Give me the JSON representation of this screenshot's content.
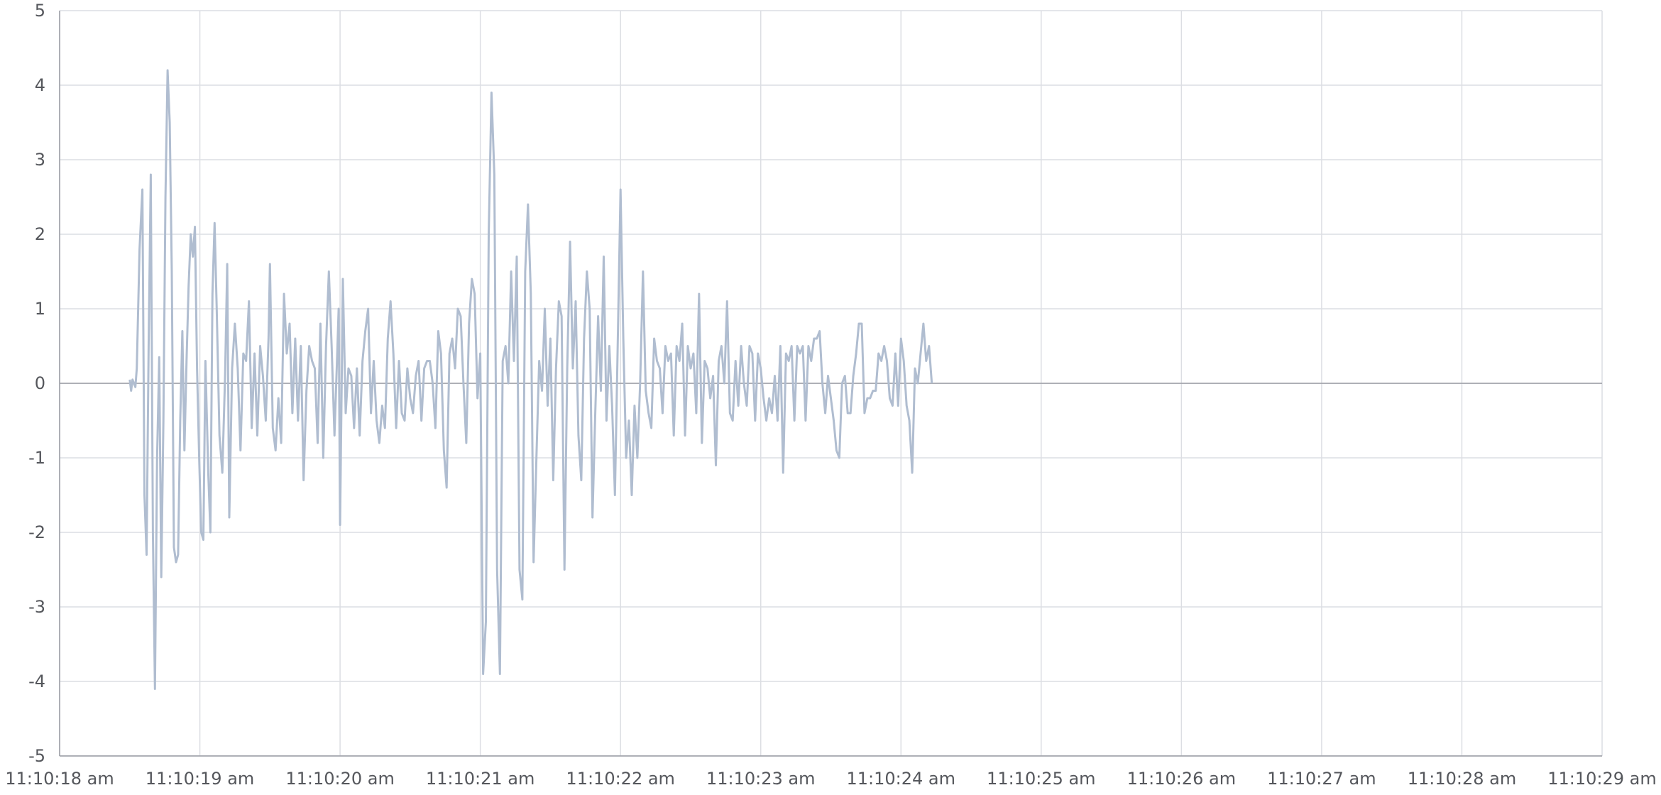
{
  "chart_data": {
    "type": "line",
    "title": "",
    "xlabel": "",
    "ylabel": "",
    "xlim": [
      0,
      11
    ],
    "ylim": [
      -5,
      5
    ],
    "grid": true,
    "legend": "none",
    "x_ticks": [
      {
        "value": 0,
        "label": "11:10:18 am"
      },
      {
        "value": 1,
        "label": "11:10:19 am"
      },
      {
        "value": 2,
        "label": "11:10:20 am"
      },
      {
        "value": 3,
        "label": "11:10:21 am"
      },
      {
        "value": 4,
        "label": "11:10:22 am"
      },
      {
        "value": 5,
        "label": "11:10:23 am"
      },
      {
        "value": 6,
        "label": "11:10:24 am"
      },
      {
        "value": 7,
        "label": "11:10:25 am"
      },
      {
        "value": 8,
        "label": "11:10:26 am"
      },
      {
        "value": 9,
        "label": "11:10:27 am"
      },
      {
        "value": 10,
        "label": "11:10:28 am"
      },
      {
        "value": 11,
        "label": "11:10:29 am"
      }
    ],
    "y_ticks": [
      {
        "value": 5,
        "label": "5"
      },
      {
        "value": 4,
        "label": "4"
      },
      {
        "value": 3,
        "label": "3"
      },
      {
        "value": 2,
        "label": "2"
      },
      {
        "value": 1,
        "label": "1"
      },
      {
        "value": 0,
        "label": "0"
      },
      {
        "value": -1,
        "label": "-1"
      },
      {
        "value": -2,
        "label": "-2"
      },
      {
        "value": -3,
        "label": "-3"
      },
      {
        "value": -4,
        "label": "-4"
      },
      {
        "value": -5,
        "label": "-5"
      }
    ],
    "series": [
      {
        "color": "#b0bdd0",
        "points": [
          [
            0.5,
            0.05
          ],
          [
            0.51,
            -0.1
          ],
          [
            0.52,
            0.05
          ],
          [
            0.54,
            -0.05
          ],
          [
            0.55,
            0.2
          ],
          [
            0.57,
            1.8
          ],
          [
            0.59,
            2.6
          ],
          [
            0.605,
            -1.5
          ],
          [
            0.62,
            -2.3
          ],
          [
            0.635,
            0.5
          ],
          [
            0.65,
            2.8
          ],
          [
            0.665,
            -2.0
          ],
          [
            0.68,
            -4.1
          ],
          [
            0.695,
            -1.0
          ],
          [
            0.71,
            0.35
          ],
          [
            0.725,
            -2.6
          ],
          [
            0.74,
            -0.5
          ],
          [
            0.755,
            2.5
          ],
          [
            0.77,
            4.2
          ],
          [
            0.785,
            3.5
          ],
          [
            0.8,
            1.5
          ],
          [
            0.815,
            -2.2
          ],
          [
            0.83,
            -2.4
          ],
          [
            0.845,
            -2.3
          ],
          [
            0.86,
            -0.5
          ],
          [
            0.875,
            0.7
          ],
          [
            0.89,
            -0.9
          ],
          [
            0.905,
            0.3
          ],
          [
            0.92,
            1.3
          ],
          [
            0.935,
            2.0
          ],
          [
            0.95,
            1.7
          ],
          [
            0.965,
            2.1
          ],
          [
            0.98,
            0.2
          ],
          [
            0.995,
            -1.0
          ],
          [
            1.01,
            -2.0
          ],
          [
            1.025,
            -2.1
          ],
          [
            1.04,
            0.3
          ],
          [
            1.06,
            -1.2
          ],
          [
            1.075,
            -2.0
          ],
          [
            1.09,
            1.2
          ],
          [
            1.105,
            2.15
          ],
          [
            1.12,
            1.0
          ],
          [
            1.14,
            -0.7
          ],
          [
            1.16,
            -1.2
          ],
          [
            1.18,
            0.1
          ],
          [
            1.195,
            1.6
          ],
          [
            1.21,
            -1.8
          ],
          [
            1.23,
            0.2
          ],
          [
            1.25,
            0.8
          ],
          [
            1.27,
            0.2
          ],
          [
            1.29,
            -0.9
          ],
          [
            1.31,
            0.4
          ],
          [
            1.33,
            0.3
          ],
          [
            1.35,
            1.1
          ],
          [
            1.37,
            -0.6
          ],
          [
            1.39,
            0.4
          ],
          [
            1.41,
            -0.7
          ],
          [
            1.43,
            0.5
          ],
          [
            1.45,
            0.1
          ],
          [
            1.47,
            -0.5
          ],
          [
            1.49,
            0.6
          ],
          [
            1.5,
            1.6
          ],
          [
            1.52,
            -0.6
          ],
          [
            1.54,
            -0.9
          ],
          [
            1.56,
            -0.2
          ],
          [
            1.58,
            -0.8
          ],
          [
            1.6,
            1.2
          ],
          [
            1.62,
            0.4
          ],
          [
            1.64,
            0.8
          ],
          [
            1.66,
            -0.4
          ],
          [
            1.68,
            0.6
          ],
          [
            1.7,
            -0.5
          ],
          [
            1.72,
            0.5
          ],
          [
            1.74,
            -1.3
          ],
          [
            1.76,
            -0.1
          ],
          [
            1.78,
            0.5
          ],
          [
            1.8,
            0.3
          ],
          [
            1.82,
            0.2
          ],
          [
            1.84,
            -0.8
          ],
          [
            1.86,
            0.8
          ],
          [
            1.88,
            -1.0
          ],
          [
            1.9,
            0.5
          ],
          [
            1.92,
            1.5
          ],
          [
            1.94,
            0.5
          ],
          [
            1.96,
            -0.7
          ],
          [
            1.98,
            0.4
          ],
          [
            1.99,
            1.0
          ],
          [
            2.0,
            -1.9
          ],
          [
            2.02,
            1.4
          ],
          [
            2.04,
            -0.4
          ],
          [
            2.06,
            0.2
          ],
          [
            2.08,
            0.1
          ],
          [
            2.1,
            -0.6
          ],
          [
            2.12,
            0.2
          ],
          [
            2.14,
            -0.7
          ],
          [
            2.16,
            0.3
          ],
          [
            2.18,
            0.7
          ],
          [
            2.2,
            1.0
          ],
          [
            2.22,
            -0.4
          ],
          [
            2.24,
            0.3
          ],
          [
            2.26,
            -0.5
          ],
          [
            2.28,
            -0.8
          ],
          [
            2.3,
            -0.3
          ],
          [
            2.32,
            -0.6
          ],
          [
            2.34,
            0.6
          ],
          [
            2.36,
            1.1
          ],
          [
            2.38,
            0.4
          ],
          [
            2.4,
            -0.6
          ],
          [
            2.42,
            0.3
          ],
          [
            2.44,
            -0.4
          ],
          [
            2.46,
            -0.5
          ],
          [
            2.48,
            0.2
          ],
          [
            2.5,
            -0.2
          ],
          [
            2.52,
            -0.4
          ],
          [
            2.54,
            0.1
          ],
          [
            2.56,
            0.3
          ],
          [
            2.58,
            -0.5
          ],
          [
            2.6,
            0.2
          ],
          [
            2.62,
            0.3
          ],
          [
            2.64,
            0.3
          ],
          [
            2.66,
            0.0
          ],
          [
            2.68,
            -0.6
          ],
          [
            2.7,
            0.7
          ],
          [
            2.72,
            0.4
          ],
          [
            2.74,
            -0.9
          ],
          [
            2.76,
            -1.4
          ],
          [
            2.78,
            0.4
          ],
          [
            2.8,
            0.6
          ],
          [
            2.82,
            0.2
          ],
          [
            2.84,
            1.0
          ],
          [
            2.86,
            0.9
          ],
          [
            2.88,
            0.0
          ],
          [
            2.9,
            -0.8
          ],
          [
            2.92,
            0.8
          ],
          [
            2.94,
            1.4
          ],
          [
            2.96,
            1.2
          ],
          [
            2.98,
            -0.2
          ],
          [
            3.0,
            0.4
          ],
          [
            3.02,
            -3.9
          ],
          [
            3.04,
            -3.2
          ],
          [
            3.06,
            2.0
          ],
          [
            3.08,
            3.9
          ],
          [
            3.1,
            2.8
          ],
          [
            3.12,
            -2.5
          ],
          [
            3.14,
            -3.9
          ],
          [
            3.16,
            0.3
          ],
          [
            3.18,
            0.5
          ],
          [
            3.2,
            0.0
          ],
          [
            3.22,
            1.5
          ],
          [
            3.24,
            0.3
          ],
          [
            3.26,
            1.7
          ],
          [
            3.28,
            -2.5
          ],
          [
            3.3,
            -2.9
          ],
          [
            3.32,
            1.5
          ],
          [
            3.34,
            2.4
          ],
          [
            3.36,
            1.2
          ],
          [
            3.38,
            -2.4
          ],
          [
            3.4,
            -1.0
          ],
          [
            3.42,
            0.3
          ],
          [
            3.44,
            -0.1
          ],
          [
            3.46,
            1.0
          ],
          [
            3.48,
            -0.3
          ],
          [
            3.5,
            0.6
          ],
          [
            3.52,
            -1.3
          ],
          [
            3.54,
            0.2
          ],
          [
            3.56,
            1.1
          ],
          [
            3.58,
            0.9
          ],
          [
            3.6,
            -2.5
          ],
          [
            3.62,
            0.2
          ],
          [
            3.64,
            1.9
          ],
          [
            3.66,
            0.2
          ],
          [
            3.68,
            1.1
          ],
          [
            3.7,
            -0.7
          ],
          [
            3.72,
            -1.3
          ],
          [
            3.74,
            0.6
          ],
          [
            3.76,
            1.5
          ],
          [
            3.78,
            1.0
          ],
          [
            3.8,
            -1.8
          ],
          [
            3.82,
            -0.4
          ],
          [
            3.84,
            0.9
          ],
          [
            3.86,
            -0.1
          ],
          [
            3.88,
            1.7
          ],
          [
            3.9,
            -0.5
          ],
          [
            3.92,
            0.5
          ],
          [
            3.94,
            -0.3
          ],
          [
            3.96,
            -1.5
          ],
          [
            3.98,
            0.5
          ],
          [
            4.0,
            2.6
          ],
          [
            4.02,
            0.6
          ],
          [
            4.04,
            -1.0
          ],
          [
            4.06,
            -0.5
          ],
          [
            4.08,
            -1.5
          ],
          [
            4.1,
            -0.3
          ],
          [
            4.12,
            -1.0
          ],
          [
            4.14,
            0.0
          ],
          [
            4.16,
            1.5
          ],
          [
            4.18,
            -0.1
          ],
          [
            4.2,
            -0.4
          ],
          [
            4.22,
            -0.6
          ],
          [
            4.24,
            0.6
          ],
          [
            4.26,
            0.3
          ],
          [
            4.28,
            0.2
          ],
          [
            4.3,
            -0.4
          ],
          [
            4.32,
            0.5
          ],
          [
            4.34,
            0.3
          ],
          [
            4.36,
            0.4
          ],
          [
            4.38,
            -0.7
          ],
          [
            4.4,
            0.5
          ],
          [
            4.42,
            0.3
          ],
          [
            4.44,
            0.8
          ],
          [
            4.46,
            -0.7
          ],
          [
            4.48,
            0.5
          ],
          [
            4.5,
            0.2
          ],
          [
            4.52,
            0.4
          ],
          [
            4.54,
            -0.4
          ],
          [
            4.56,
            1.2
          ],
          [
            4.58,
            -0.8
          ],
          [
            4.6,
            0.3
          ],
          [
            4.62,
            0.2
          ],
          [
            4.64,
            -0.2
          ],
          [
            4.66,
            0.1
          ],
          [
            4.68,
            -1.1
          ],
          [
            4.7,
            0.3
          ],
          [
            4.72,
            0.5
          ],
          [
            4.74,
            0.0
          ],
          [
            4.76,
            1.1
          ],
          [
            4.78,
            -0.4
          ],
          [
            4.8,
            -0.5
          ],
          [
            4.82,
            0.3
          ],
          [
            4.84,
            -0.3
          ],
          [
            4.86,
            0.5
          ],
          [
            4.88,
            0.0
          ],
          [
            4.9,
            -0.3
          ],
          [
            4.92,
            0.5
          ],
          [
            4.94,
            0.4
          ],
          [
            4.96,
            -0.5
          ],
          [
            4.98,
            0.4
          ],
          [
            5.0,
            0.2
          ],
          [
            5.02,
            -0.2
          ],
          [
            5.04,
            -0.5
          ],
          [
            5.06,
            -0.2
          ],
          [
            5.08,
            -0.4
          ],
          [
            5.1,
            0.1
          ],
          [
            5.12,
            -0.5
          ],
          [
            5.14,
            0.5
          ],
          [
            5.16,
            -1.2
          ],
          [
            5.18,
            0.4
          ],
          [
            5.2,
            0.3
          ],
          [
            5.22,
            0.5
          ],
          [
            5.24,
            -0.5
          ],
          [
            5.26,
            0.5
          ],
          [
            5.28,
            0.4
          ],
          [
            5.3,
            0.5
          ],
          [
            5.32,
            -0.5
          ],
          [
            5.34,
            0.5
          ],
          [
            5.36,
            0.3
          ],
          [
            5.38,
            0.6
          ],
          [
            5.4,
            0.6
          ],
          [
            5.42,
            0.7
          ],
          [
            5.44,
            0.0
          ],
          [
            5.46,
            -0.4
          ],
          [
            5.48,
            0.1
          ],
          [
            5.5,
            -0.2
          ],
          [
            5.52,
            -0.5
          ],
          [
            5.54,
            -0.9
          ],
          [
            5.56,
            -1.0
          ],
          [
            5.58,
            0.0
          ],
          [
            5.6,
            0.1
          ],
          [
            5.62,
            -0.4
          ],
          [
            5.64,
            -0.4
          ],
          [
            5.66,
            0.1
          ],
          [
            5.68,
            0.4
          ],
          [
            5.7,
            0.8
          ],
          [
            5.72,
            0.8
          ],
          [
            5.74,
            -0.4
          ],
          [
            5.76,
            -0.2
          ],
          [
            5.78,
            -0.2
          ],
          [
            5.8,
            -0.1
          ],
          [
            5.82,
            -0.1
          ],
          [
            5.84,
            0.4
          ],
          [
            5.86,
            0.3
          ],
          [
            5.88,
            0.5
          ],
          [
            5.9,
            0.3
          ],
          [
            5.92,
            -0.2
          ],
          [
            5.94,
            -0.3
          ],
          [
            5.96,
            0.4
          ],
          [
            5.98,
            -0.3
          ],
          [
            6.0,
            0.6
          ],
          [
            6.02,
            0.3
          ],
          [
            6.04,
            -0.3
          ],
          [
            6.06,
            -0.5
          ],
          [
            6.08,
            -1.2
          ],
          [
            6.1,
            0.2
          ],
          [
            6.12,
            0.0
          ],
          [
            6.14,
            0.4
          ],
          [
            6.16,
            0.8
          ],
          [
            6.18,
            0.3
          ],
          [
            6.2,
            0.5
          ],
          [
            6.22,
            0.0
          ]
        ]
      }
    ]
  }
}
